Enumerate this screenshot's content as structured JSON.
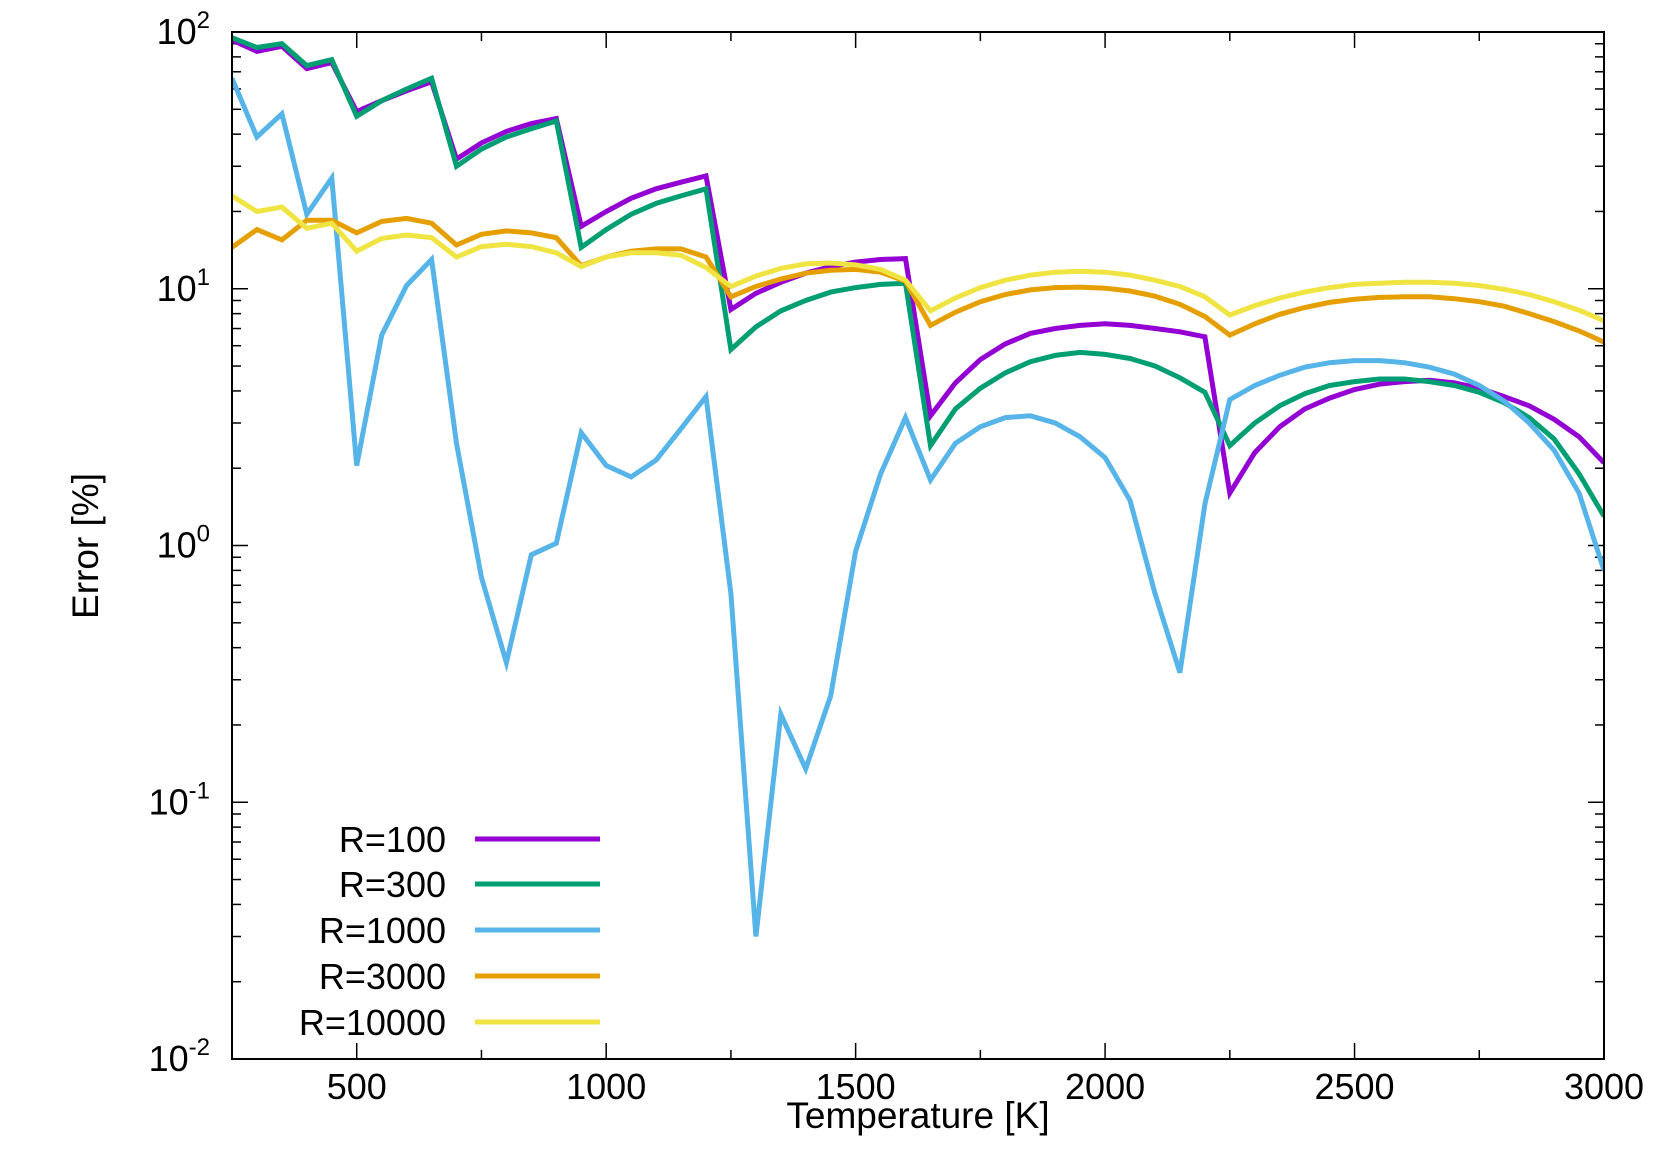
{
  "chart_data": {
    "type": "line",
    "title": "",
    "xlabel": "Temperature [K]",
    "ylabel": "Error [%]",
    "xlim": [
      250,
      3000
    ],
    "ylim": [
      0.01,
      100
    ],
    "yscale": "log",
    "grid": false,
    "legend_position": "bottom-left",
    "x_ticks": [
      {
        "value": 500,
        "label": "500"
      },
      {
        "value": 1000,
        "label": "1000"
      },
      {
        "value": 1500,
        "label": "1500"
      },
      {
        "value": 2000,
        "label": "2000"
      },
      {
        "value": 2500,
        "label": "2500"
      },
      {
        "value": 3000,
        "label": "3000"
      }
    ],
    "y_ticks": [
      {
        "value": 0.01,
        "base": "10",
        "exp": "-2"
      },
      {
        "value": 0.1,
        "base": "10",
        "exp": "-1"
      },
      {
        "value": 1,
        "base": "10",
        "exp": "0"
      },
      {
        "value": 10,
        "base": "10",
        "exp": "1"
      },
      {
        "value": 100,
        "base": "10",
        "exp": "2"
      }
    ],
    "x": [
      250,
      300,
      350,
      400,
      450,
      500,
      550,
      600,
      650,
      700,
      750,
      800,
      850,
      900,
      950,
      1000,
      1050,
      1100,
      1150,
      1200,
      1250,
      1300,
      1350,
      1400,
      1450,
      1500,
      1550,
      1600,
      1650,
      1700,
      1750,
      1800,
      1850,
      1900,
      1950,
      2000,
      2050,
      2100,
      2150,
      2200,
      2250,
      2300,
      2350,
      2400,
      2450,
      2500,
      2550,
      2600,
      2650,
      2700,
      2750,
      2800,
      2850,
      2900,
      2950,
      3000
    ],
    "series": [
      {
        "name": "R=100",
        "color": "#9400d3",
        "values": [
          93,
          84,
          88,
          72,
          76,
          49,
          54,
          59,
          64,
          32,
          37,
          41,
          44,
          46,
          17.5,
          20,
          22.5,
          24.5,
          26,
          27.5,
          8.3,
          9.6,
          10.6,
          11.5,
          12.2,
          12.7,
          13,
          13.1,
          3.2,
          4.3,
          5.3,
          6.1,
          6.7,
          7.0,
          7.2,
          7.3,
          7.2,
          7.0,
          6.8,
          6.5,
          1.6,
          2.3,
          2.9,
          3.4,
          3.75,
          4.05,
          4.25,
          4.35,
          4.4,
          4.3,
          4.1,
          3.8,
          3.5,
          3.1,
          2.65,
          2.1
        ]
      },
      {
        "name": "R=300",
        "color": "#009e73",
        "values": [
          95,
          87,
          90,
          74,
          78,
          47,
          54,
          60,
          66,
          30,
          35,
          39,
          42,
          45,
          14.5,
          17,
          19.5,
          21.5,
          23,
          24.5,
          5.8,
          7.1,
          8.2,
          9.0,
          9.7,
          10.1,
          10.4,
          10.5,
          2.45,
          3.4,
          4.1,
          4.7,
          5.2,
          5.5,
          5.65,
          5.55,
          5.35,
          5.0,
          4.5,
          3.95,
          2.45,
          3.0,
          3.5,
          3.9,
          4.2,
          4.35,
          4.45,
          4.45,
          4.35,
          4.2,
          3.95,
          3.6,
          3.15,
          2.6,
          1.9,
          1.3
        ]
      },
      {
        "name": "R=1000",
        "color": "#56b4e9",
        "values": [
          66,
          39,
          48,
          19.5,
          27,
          2.05,
          6.6,
          10.3,
          13,
          2.5,
          0.75,
          0.35,
          0.92,
          1.02,
          2.75,
          2.05,
          1.85,
          2.15,
          2.85,
          3.8,
          0.65,
          0.03,
          0.22,
          0.135,
          0.26,
          0.95,
          1.9,
          3.15,
          1.8,
          2.5,
          2.9,
          3.15,
          3.2,
          3.0,
          2.65,
          2.2,
          1.5,
          0.65,
          0.32,
          1.45,
          3.7,
          4.2,
          4.6,
          4.95,
          5.15,
          5.25,
          5.25,
          5.15,
          4.95,
          4.65,
          4.2,
          3.65,
          3.0,
          2.35,
          1.6,
          0.8
        ]
      },
      {
        "name": "R=3000",
        "color": "#e69f00",
        "values": [
          14.5,
          17,
          15.5,
          18.5,
          18.5,
          16.5,
          18.3,
          18.8,
          18,
          14.8,
          16.3,
          16.8,
          16.5,
          15.8,
          12.3,
          13.3,
          14,
          14.3,
          14.3,
          13.3,
          9.3,
          10.2,
          10.9,
          11.5,
          11.8,
          11.9,
          11.6,
          10.7,
          7.2,
          8.1,
          8.9,
          9.5,
          9.9,
          10.1,
          10.15,
          10.05,
          9.8,
          9.35,
          8.7,
          7.8,
          6.6,
          7.3,
          7.95,
          8.45,
          8.85,
          9.1,
          9.25,
          9.3,
          9.3,
          9.15,
          8.9,
          8.55,
          8.0,
          7.45,
          6.85,
          6.2
        ]
      },
      {
        "name": "R=10000",
        "color": "#f0e442",
        "values": [
          23,
          20,
          20.8,
          17.2,
          18,
          14,
          15.7,
          16.2,
          15.8,
          13.3,
          14.6,
          14.9,
          14.6,
          13.8,
          12.2,
          13.3,
          13.8,
          13.8,
          13.5,
          12.1,
          10.2,
          11.2,
          12,
          12.5,
          12.6,
          12.4,
          11.9,
          10.8,
          8.2,
          9.2,
          10.1,
          10.8,
          11.3,
          11.6,
          11.7,
          11.6,
          11.3,
          10.8,
          10.2,
          9.3,
          7.9,
          8.6,
          9.2,
          9.7,
          10.1,
          10.4,
          10.5,
          10.6,
          10.6,
          10.5,
          10.3,
          9.95,
          9.5,
          8.9,
          8.25,
          7.5
        ]
      }
    ]
  }
}
